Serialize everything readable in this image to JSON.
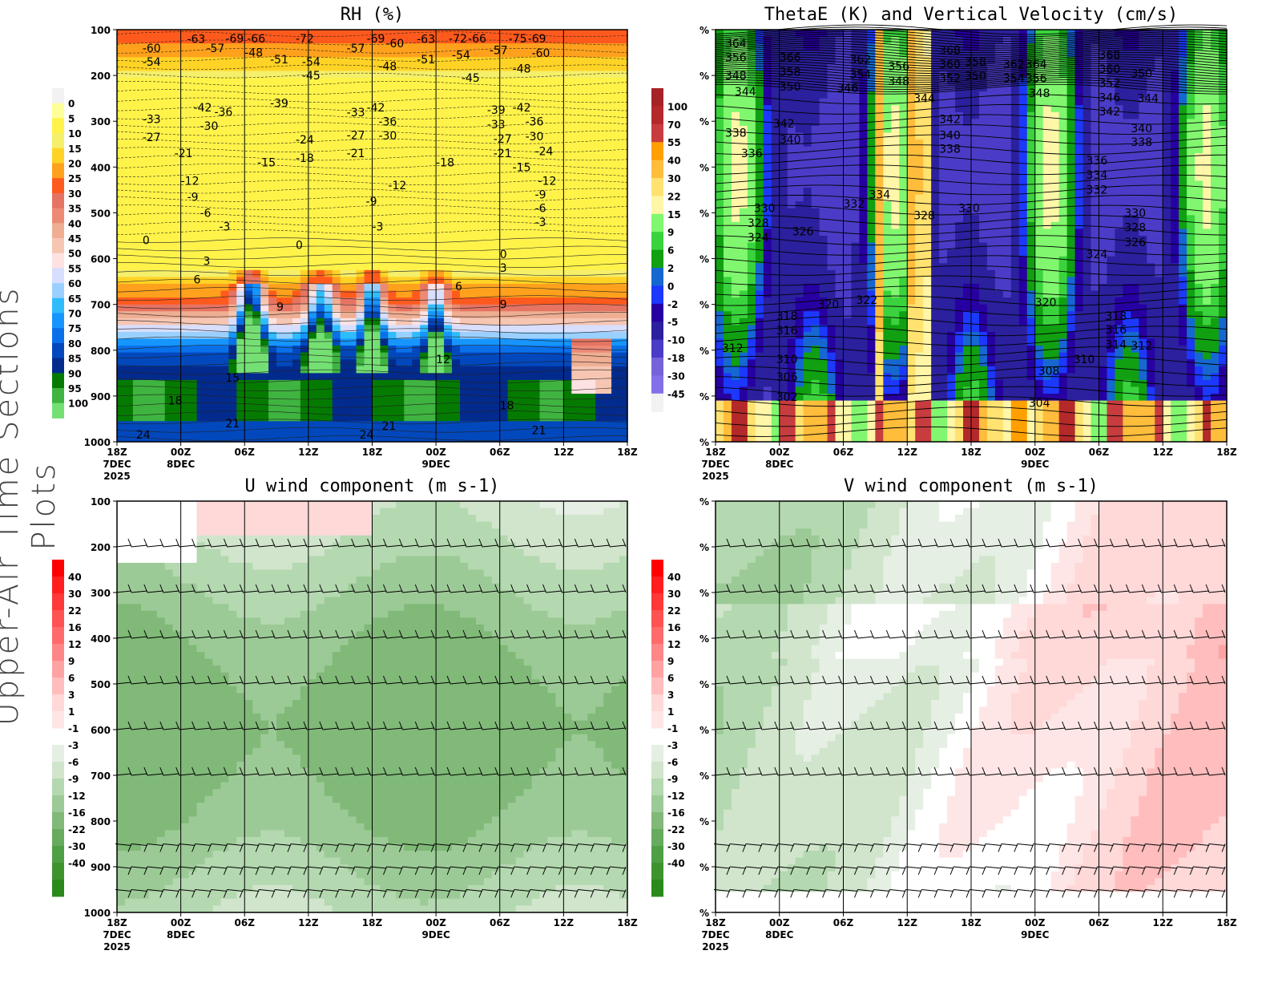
{
  "side_title": "Upper-Air Time Sections Plots",
  "time_axis": {
    "ticks": [
      "18Z",
      "00Z",
      "06Z",
      "12Z",
      "18Z",
      "00Z",
      "06Z",
      "12Z",
      "18Z"
    ],
    "sublabels": [
      [
        "7DEC",
        "2025"
      ],
      [
        "8DEC"
      ],
      [],
      [],
      [],
      [
        "9DEC"
      ],
      [],
      [],
      []
    ]
  },
  "chart_data": [
    {
      "id": "rh",
      "type": "heatmap",
      "title": "RH (%)",
      "y_ticks": [
        "100",
        "200",
        "300",
        "400",
        "500",
        "600",
        "700",
        "800",
        "900",
        "1000"
      ],
      "ylim": [
        100,
        1000
      ],
      "colorbar": {
        "labels": [
          "0",
          "5",
          "10",
          "15",
          "20",
          "25",
          "30",
          "35",
          "40",
          "45",
          "50",
          "55",
          "60",
          "65",
          "70",
          "75",
          "80",
          "85",
          "90",
          "95",
          "100"
        ],
        "colors": [
          "#f2f2f2",
          "#ffff9a",
          "#fff34a",
          "#f5ef6a",
          "#ffd326",
          "#ffa11c",
          "#ff5a1d",
          "#e57463",
          "#ec8a76",
          "#efae92",
          "#f6c6b3",
          "#fde2e2",
          "#d8defe",
          "#9ad0ff",
          "#2fbcfd",
          "#1595fd",
          "#0a70ea",
          "#0248bd",
          "#032b8e",
          "#047b00",
          "#3fb440",
          "#74e073"
        ]
      },
      "contour_labels": [
        {
          "t": 0.4,
          "p": 140,
          "v": "-60"
        },
        {
          "t": 0.4,
          "p": 170,
          "v": "-54"
        },
        {
          "t": 0.4,
          "p": 295,
          "v": "-33"
        },
        {
          "t": 0.4,
          "p": 335,
          "v": "-27"
        },
        {
          "t": 0.4,
          "p": 560,
          "v": "0"
        },
        {
          "t": 0.9,
          "p": 370,
          "v": "-21"
        },
        {
          "t": 1.4,
          "p": 140,
          "v": "-57"
        },
        {
          "t": 1.2,
          "p": 270,
          "v": "-42"
        },
        {
          "t": 1.3,
          "p": 310,
          "v": "-30"
        },
        {
          "t": 1.0,
          "p": 430,
          "v": "-12"
        },
        {
          "t": 1.1,
          "p": 465,
          "v": "-9"
        },
        {
          "t": 1.3,
          "p": 500,
          "v": "-6"
        },
        {
          "t": 1.6,
          "p": 530,
          "v": "-3"
        },
        {
          "t": 1.35,
          "p": 605,
          "v": "3"
        },
        {
          "t": 1.2,
          "p": 645,
          "v": "6"
        },
        {
          "t": 1.4,
          "p": 85,
          "v": "-69"
        },
        {
          "t": 1.4,
          "p": 120,
          "v": "-63"
        },
        {
          "t": 1.45,
          "p": 290,
          "v": "-36"
        },
        {
          "t": 2.0,
          "p": 150,
          "v": "-48"
        },
        {
          "t": 2.0,
          "p": 100,
          "v": "-66"
        },
        {
          "t": 2.2,
          "p": 390,
          "v": "-15"
        },
        {
          "t": 2.4,
          "p": 165,
          "v": "-51"
        },
        {
          "t": 2.4,
          "p": 260,
          "v": "-39"
        },
        {
          "t": 2.5,
          "p": 705,
          "v": "9"
        },
        {
          "t": 2.8,
          "p": 35,
          "v": "-72"
        },
        {
          "t": 2.9,
          "p": 170,
          "v": "-54"
        },
        {
          "t": 2.9,
          "p": 200,
          "v": "-45"
        },
        {
          "t": 2.8,
          "p": 340,
          "v": "-24"
        },
        {
          "t": 2.8,
          "p": 380,
          "v": "-18"
        },
        {
          "t": 2.8,
          "p": 570,
          "v": "0"
        },
        {
          "t": 3.6,
          "p": 140,
          "v": "-57"
        },
        {
          "t": 3.6,
          "p": 280,
          "v": "-33"
        },
        {
          "t": 3.6,
          "p": 330,
          "v": "-27"
        },
        {
          "t": 3.6,
          "p": 370,
          "v": "-21"
        },
        {
          "t": 3.8,
          "p": 90,
          "v": "-69"
        },
        {
          "t": 3.8,
          "p": 270,
          "v": "-42"
        },
        {
          "t": 4.1,
          "p": 130,
          "v": "-60"
        },
        {
          "t": 4.1,
          "p": 180,
          "v": "-48"
        },
        {
          "t": 4.1,
          "p": 290,
          "v": "-36"
        },
        {
          "t": 4.1,
          "p": 310,
          "v": "-30"
        },
        {
          "t": 4.25,
          "p": 440,
          "v": "-12"
        },
        {
          "t": 3.9,
          "p": 475,
          "v": "-9"
        },
        {
          "t": 4.0,
          "p": 530,
          "v": "-3"
        },
        {
          "t": 4.7,
          "p": 120,
          "v": "-63"
        },
        {
          "t": 4.7,
          "p": 165,
          "v": "-51"
        },
        {
          "t": 5.0,
          "p": 390,
          "v": "-18"
        },
        {
          "t": 5.0,
          "p": 820,
          "v": "12"
        },
        {
          "t": 5.2,
          "p": 45,
          "v": "-72"
        },
        {
          "t": 5.2,
          "p": 65,
          "v": "-66"
        },
        {
          "t": 5.25,
          "p": 155,
          "v": "-54"
        },
        {
          "t": 5.4,
          "p": 205,
          "v": "-45"
        },
        {
          "t": 5.3,
          "p": 660,
          "v": "6"
        },
        {
          "t": 5.8,
          "p": 145,
          "v": "-57"
        },
        {
          "t": 5.8,
          "p": 275,
          "v": "-39"
        },
        {
          "t": 5.8,
          "p": 300,
          "v": "-33"
        },
        {
          "t": 5.9,
          "p": 335,
          "v": "-27"
        },
        {
          "t": 5.9,
          "p": 370,
          "v": "-21"
        },
        {
          "t": 6.0,
          "p": 590,
          "v": "0"
        },
        {
          "t": 6.0,
          "p": 620,
          "v": "3"
        },
        {
          "t": 6.0,
          "p": 700,
          "v": "9"
        },
        {
          "t": 6.1,
          "p": 35,
          "v": "-75"
        },
        {
          "t": 6.1,
          "p": 60,
          "v": "-69"
        },
        {
          "t": 6.2,
          "p": 270,
          "v": "-42"
        },
        {
          "t": 6.4,
          "p": 290,
          "v": "-36"
        },
        {
          "t": 6.4,
          "p": 315,
          "v": "-30"
        },
        {
          "t": 6.2,
          "p": 185,
          "v": "-48"
        },
        {
          "t": 6.2,
          "p": 400,
          "v": "-15"
        },
        {
          "t": 6.5,
          "p": 130,
          "v": "-60"
        },
        {
          "t": 6.55,
          "p": 355,
          "v": "-24"
        },
        {
          "t": 6.6,
          "p": 430,
          "v": "-12"
        },
        {
          "t": 6.55,
          "p": 460,
          "v": "-9"
        },
        {
          "t": 6.55,
          "p": 490,
          "v": "-6"
        },
        {
          "t": 6.55,
          "p": 520,
          "v": "-3"
        },
        {
          "t": 6.0,
          "p": 920,
          "v": "18"
        },
        {
          "t": 6.5,
          "p": 975,
          "v": "21"
        },
        {
          "t": 0.8,
          "p": 910,
          "v": "18"
        },
        {
          "t": 0.3,
          "p": 995,
          "v": "24"
        },
        {
          "t": 1.7,
          "p": 860,
          "v": "15"
        },
        {
          "t": 1.7,
          "p": 960,
          "v": "21"
        },
        {
          "t": 3.8,
          "p": 1000,
          "v": "24"
        },
        {
          "t": 4.15,
          "p": 965,
          "v": "21"
        }
      ]
    },
    {
      "id": "thetae",
      "type": "heatmap",
      "title": "ThetaE (K) and Vertical Velocity (cm/s)",
      "y_ticks": [
        "%",
        "%",
        "%",
        "%",
        "%",
        "%",
        "%",
        "%",
        "%",
        "%"
      ],
      "ylim": [
        100,
        1000
      ],
      "colorbar": {
        "labels": [
          "100",
          "70",
          "55",
          "40",
          "30",
          "22",
          "15",
          "9",
          "6",
          "2",
          "0",
          "-2",
          "-5",
          "-10",
          "-18",
          "-30",
          "-45"
        ],
        "colors": [
          "#a52226",
          "#b4292a",
          "#c73c3e",
          "#ff9f00",
          "#ffbd3c",
          "#ffe270",
          "#fff6a8",
          "#80f76f",
          "#3ad33d",
          "#10a012",
          "#1667d1",
          "#1c38fb",
          "#2700a2",
          "#2b209d",
          "#4a3cc6",
          "#7563da",
          "#8270ea",
          "#f2f2f2"
        ]
      },
      "contour_labels": [
        {
          "t": 0.15,
          "p": 130,
          "v": "364"
        },
        {
          "t": 0.15,
          "p": 160,
          "v": "356"
        },
        {
          "t": 0.15,
          "p": 200,
          "v": "348"
        },
        {
          "t": 0.3,
          "p": 235,
          "v": "344"
        },
        {
          "t": 0.15,
          "p": 325,
          "v": "338"
        },
        {
          "t": 0.4,
          "p": 370,
          "v": "336"
        },
        {
          "t": 0.6,
          "p": 490,
          "v": "330"
        },
        {
          "t": 0.5,
          "p": 515,
          "v": "328"
        },
        {
          "t": 0.5,
          "p": 550,
          "v": "324"
        },
        {
          "t": 0.1,
          "p": 795,
          "v": "312"
        },
        {
          "t": 0.95,
          "p": 725,
          "v": "318"
        },
        {
          "t": 0.95,
          "p": 750,
          "v": "316"
        },
        {
          "t": 0.95,
          "p": 820,
          "v": "310"
        },
        {
          "t": 0.95,
          "p": 858,
          "v": "306"
        },
        {
          "t": 0.95,
          "p": 902,
          "v": "302"
        },
        {
          "t": 1.0,
          "p": 160,
          "v": "366"
        },
        {
          "t": 1.0,
          "p": 185,
          "v": "358"
        },
        {
          "t": 1.0,
          "p": 210,
          "v": "350"
        },
        {
          "t": 0.9,
          "p": 305,
          "v": "342"
        },
        {
          "t": 1.0,
          "p": 340,
          "v": "340"
        },
        {
          "t": 1.2,
          "p": 540,
          "v": "326"
        },
        {
          "t": 1.9,
          "p": 227,
          "v": "346"
        },
        {
          "t": 1.6,
          "p": 700,
          "v": "320"
        },
        {
          "t": 2.1,
          "p": 165,
          "v": "362"
        },
        {
          "t": 2.1,
          "p": 190,
          "v": "354"
        },
        {
          "t": 2.0,
          "p": 480,
          "v": "332"
        },
        {
          "t": 2.4,
          "p": 460,
          "v": "334"
        },
        {
          "t": 2.7,
          "p": 180,
          "v": "356"
        },
        {
          "t": 2.7,
          "p": 205,
          "v": "348"
        },
        {
          "t": 2.2,
          "p": 690,
          "v": "322"
        },
        {
          "t": 3.1,
          "p": 250,
          "v": "344"
        },
        {
          "t": 3.1,
          "p": 505,
          "v": "328"
        },
        {
          "t": 3.5,
          "p": 145,
          "v": "368"
        },
        {
          "t": 3.5,
          "p": 165,
          "v": "360"
        },
        {
          "t": 3.5,
          "p": 185,
          "v": "352"
        },
        {
          "t": 3.5,
          "p": 295,
          "v": "342"
        },
        {
          "t": 3.5,
          "p": 330,
          "v": "340"
        },
        {
          "t": 3.5,
          "p": 360,
          "v": "338"
        },
        {
          "t": 3.9,
          "p": 170,
          "v": "358"
        },
        {
          "t": 3.9,
          "p": 190,
          "v": "350"
        },
        {
          "t": 3.8,
          "p": 490,
          "v": "330"
        },
        {
          "t": 4.5,
          "p": 175,
          "v": "362"
        },
        {
          "t": 4.5,
          "p": 195,
          "v": "354"
        },
        {
          "t": 4.85,
          "p": 175,
          "v": "364"
        },
        {
          "t": 4.85,
          "p": 195,
          "v": "356"
        },
        {
          "t": 4.9,
          "p": 235,
          "v": "348"
        },
        {
          "t": 5.0,
          "p": 695,
          "v": "320"
        },
        {
          "t": 5.05,
          "p": 845,
          "v": "308"
        },
        {
          "t": 4.9,
          "p": 915,
          "v": "304"
        },
        {
          "t": 6.0,
          "p": 155,
          "v": "368"
        },
        {
          "t": 6.0,
          "p": 175,
          "v": "360"
        },
        {
          "t": 6.0,
          "p": 195,
          "v": "352"
        },
        {
          "t": 6.0,
          "p": 220,
          "v": "346"
        },
        {
          "t": 6.5,
          "p": 195,
          "v": "350"
        },
        {
          "t": 6.6,
          "p": 250,
          "v": "344"
        },
        {
          "t": 6.0,
          "p": 275,
          "v": "342"
        },
        {
          "t": 6.5,
          "p": 315,
          "v": "340"
        },
        {
          "t": 6.5,
          "p": 345,
          "v": "338"
        },
        {
          "t": 5.8,
          "p": 385,
          "v": "336"
        },
        {
          "t": 5.8,
          "p": 410,
          "v": "334"
        },
        {
          "t": 5.8,
          "p": 435,
          "v": "332"
        },
        {
          "t": 6.4,
          "p": 500,
          "v": "330"
        },
        {
          "t": 6.4,
          "p": 525,
          "v": "328"
        },
        {
          "t": 6.4,
          "p": 550,
          "v": "326"
        },
        {
          "t": 5.8,
          "p": 590,
          "v": "324"
        },
        {
          "t": 6.1,
          "p": 725,
          "v": "318"
        },
        {
          "t": 6.1,
          "p": 755,
          "v": "316"
        },
        {
          "t": 6.1,
          "p": 780,
          "v": "314"
        },
        {
          "t": 5.6,
          "p": 820,
          "v": "310"
        },
        {
          "t": 6.5,
          "p": 790,
          "v": "312"
        }
      ]
    },
    {
      "id": "u",
      "type": "heatmap",
      "title": "U wind component (m s-1)",
      "y_ticks": [
        "100",
        "200",
        "300",
        "400",
        "500",
        "600",
        "700",
        "800",
        "900",
        "1000"
      ],
      "ylim": [
        100,
        1000
      ],
      "colorbar": {
        "labels": [
          "40",
          "30",
          "22",
          "16",
          "12",
          "9",
          "6",
          "3",
          "1",
          "-1",
          "-3",
          "-6",
          "-9",
          "-12",
          "-16",
          "-22",
          "-30",
          "-40"
        ],
        "colors": [
          "#fe0000",
          "#ff1e1e",
          "#ff3838",
          "#ff5252",
          "#ff6b6b",
          "#ff8686",
          "#ffa2a2",
          "#ffbdbd",
          "#ffd8d8",
          "#ffe6e6",
          "#ffffff",
          "#e6efe4",
          "#d0e5cc",
          "#b4d8b0",
          "#9cca96",
          "#80b978",
          "#66ab5e",
          "#4f9f45",
          "#3d942f",
          "#2a8a1a"
        ]
      },
      "barb_levels": [
        200,
        300,
        400,
        500,
        600,
        700,
        850,
        900,
        950
      ]
    },
    {
      "id": "v",
      "type": "heatmap",
      "title": "V wind component (m s-1)",
      "y_ticks": [
        "%",
        "%",
        "%",
        "%",
        "%",
        "%",
        "%",
        "%",
        "%",
        "%"
      ],
      "ylim": [
        100,
        1000
      ],
      "colorbar": {
        "labels": [
          "40",
          "30",
          "22",
          "16",
          "12",
          "9",
          "6",
          "3",
          "1",
          "-1",
          "-3",
          "-6",
          "-9",
          "-12",
          "-16",
          "-22",
          "-30",
          "-40"
        ],
        "colors": [
          "#fe0000",
          "#ff1e1e",
          "#ff3838",
          "#ff5252",
          "#ff6b6b",
          "#ff8686",
          "#ffa2a2",
          "#ffbdbd",
          "#ffd8d8",
          "#ffe6e6",
          "#ffffff",
          "#e6efe4",
          "#d0e5cc",
          "#b4d8b0",
          "#9cca96",
          "#80b978",
          "#66ab5e",
          "#4f9f45",
          "#3d942f",
          "#2a8a1a"
        ]
      },
      "barb_levels": [
        200,
        300,
        400,
        500,
        600,
        700,
        850,
        900,
        950
      ]
    }
  ]
}
